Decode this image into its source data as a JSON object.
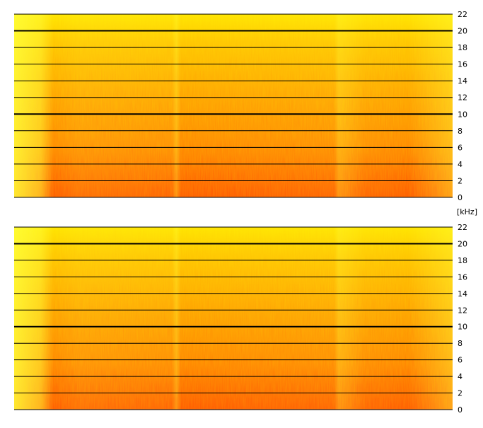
{
  "chart_data": [
    {
      "type": "heatmap",
      "title": "",
      "xlabel": "",
      "ylabel": "",
      "y_unit": "[kHz]",
      "ylim": [
        0,
        22
      ],
      "y_ticks": [
        0,
        2,
        4,
        6,
        8,
        10,
        12,
        14,
        16,
        18,
        20,
        22
      ],
      "y_tick_labels": [
        "0",
        "2",
        "4",
        "6",
        "8",
        "10",
        "12",
        "14",
        "16",
        "18",
        "20",
        "22"
      ],
      "bold_gridlines": [
        10,
        20
      ],
      "grid": true,
      "colormap": [
        "#ffff00",
        "#ffc000",
        "#ff9000",
        "#ff6000",
        "#ff3000"
      ],
      "background": "#ffffff",
      "tick_side": "right"
    },
    {
      "type": "heatmap",
      "title": "",
      "xlabel": "",
      "ylabel": "",
      "ylim": [
        0,
        22
      ],
      "y_ticks": [
        0,
        2,
        4,
        6,
        8,
        10,
        12,
        14,
        16,
        18,
        20,
        22
      ],
      "y_tick_labels": [
        "0",
        "2",
        "4",
        "6",
        "8",
        "10",
        "12",
        "14",
        "16",
        "18",
        "20",
        "22"
      ],
      "bold_gridlines": [
        10,
        20
      ],
      "grid": true,
      "colormap": [
        "#ffff00",
        "#ffc000",
        "#ff9000",
        "#ff6000",
        "#ff3000"
      ],
      "background": "#ffffff",
      "tick_side": "right"
    }
  ]
}
